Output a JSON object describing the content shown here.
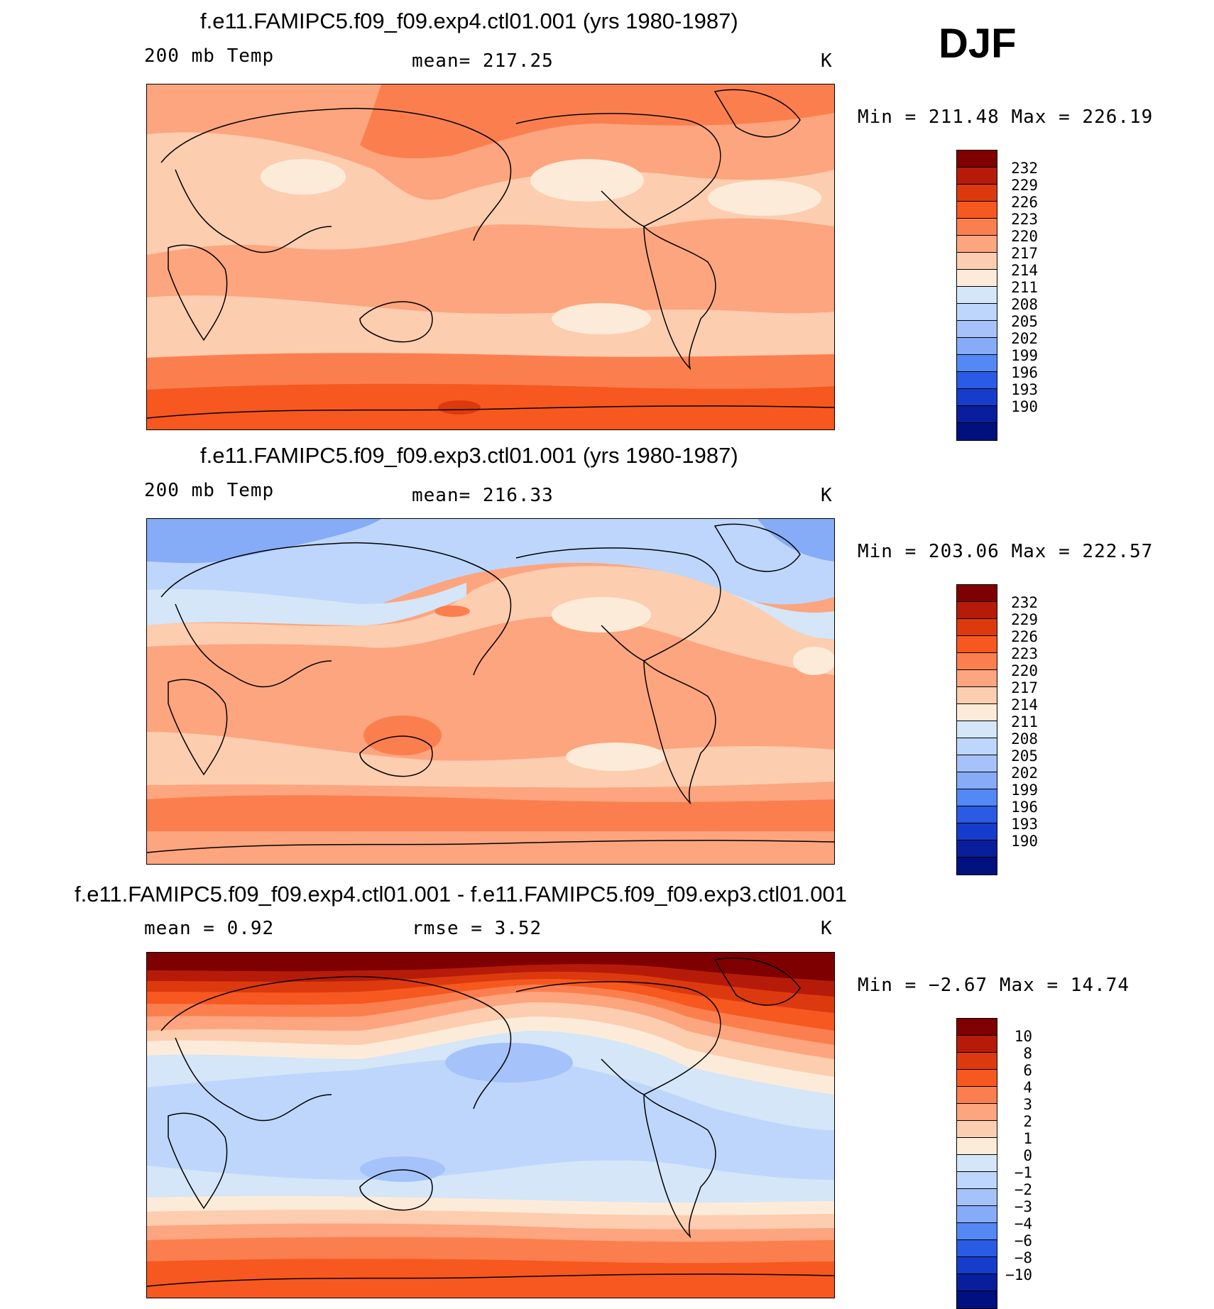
{
  "header": {
    "season": "DJF"
  },
  "panels": [
    {
      "title": "f.e11.FAMIPC5.f09_f09.exp4.ctl01.001 (yrs 1980-1987)",
      "left_label": "200  mb  Temp",
      "mid_label": "mean=  217.25",
      "unit": "K",
      "minmax": "Min  =  211.48  Max  =  226.19",
      "colorbar": {
        "colors": [
          "#7f0000",
          "#b61b0a",
          "#dc3a0e",
          "#f7581f",
          "#fb7f4e",
          "#fca57f",
          "#fdcdb0",
          "#fdebd9",
          "#d4e6f7",
          "#bed6fb",
          "#a5c3fa",
          "#86abf7",
          "#5388f5",
          "#2a5be5",
          "#163ccb",
          "#081e9c",
          "#00107f"
        ],
        "labels": [
          "232",
          "229",
          "226",
          "223",
          "220",
          "217",
          "214",
          "211",
          "208",
          "205",
          "202",
          "199",
          "196",
          "193",
          "190"
        ]
      }
    },
    {
      "title": "f.e11.FAMIPC5.f09_f09.exp3.ctl01.001 (yrs 1980-1987)",
      "left_label": "200  mb  Temp",
      "mid_label": "mean=  216.33",
      "unit": "K",
      "minmax": "Min  =  203.06  Max  =  222.57",
      "colorbar": {
        "colors": [
          "#7f0000",
          "#b61b0a",
          "#dc3a0e",
          "#f7581f",
          "#fb7f4e",
          "#fca57f",
          "#fdcdb0",
          "#fdebd9",
          "#d4e6f7",
          "#bed6fb",
          "#a5c3fa",
          "#86abf7",
          "#5388f5",
          "#2a5be5",
          "#163ccb",
          "#081e9c",
          "#00107f"
        ],
        "labels": [
          "232",
          "229",
          "226",
          "223",
          "220",
          "217",
          "214",
          "211",
          "208",
          "205",
          "202",
          "199",
          "196",
          "193",
          "190"
        ]
      }
    },
    {
      "title": "f.e11.FAMIPC5.f09_f09.exp4.ctl01.001 - f.e11.FAMIPC5.f09_f09.exp3.ctl01.001",
      "left_label": "mean  =    0.92",
      "mid_label": "rmse  =    3.52",
      "unit": "K",
      "minmax": "Min  =   −2.67  Max  =   14.74",
      "colorbar": {
        "colors": [
          "#7f0000",
          "#b61b0a",
          "#dc3a0e",
          "#f7581f",
          "#fb7f4e",
          "#fca57f",
          "#fdcdb0",
          "#fdebd9",
          "#d4e6f7",
          "#bed6fb",
          "#a5c3fa",
          "#86abf7",
          "#5388f5",
          "#2a5be5",
          "#163ccb",
          "#081e9c",
          "#00107f"
        ],
        "labels": [
          "10",
          "8",
          "6",
          "4",
          "3",
          "2",
          "1",
          "0",
          "−1",
          "−2",
          "−3",
          "−4",
          "−6",
          "−8",
          "−10"
        ]
      }
    }
  ],
  "chart_data": [
    {
      "type": "heatmap",
      "title": "f.e11.FAMIPC5.f09_f09.exp4.ctl01.001 (yrs 1980-1987)",
      "variable": "200 mb Temp",
      "units": "K",
      "mean": 217.25,
      "min": 211.48,
      "max": 226.19,
      "levels": [
        190,
        193,
        196,
        199,
        202,
        205,
        208,
        211,
        214,
        217,
        220,
        223,
        226,
        229,
        232
      ]
    },
    {
      "type": "heatmap",
      "title": "f.e11.FAMIPC5.f09_f09.exp3.ctl01.001 (yrs 1980-1987)",
      "variable": "200 mb Temp",
      "units": "K",
      "mean": 216.33,
      "min": 203.06,
      "max": 222.57,
      "levels": [
        190,
        193,
        196,
        199,
        202,
        205,
        208,
        211,
        214,
        217,
        220,
        223,
        226,
        229,
        232
      ]
    },
    {
      "type": "heatmap",
      "title": "f.e11.FAMIPC5.f09_f09.exp4.ctl01.001 - f.e11.FAMIPC5.f09_f09.exp3.ctl01.001",
      "units": "K",
      "mean": 0.92,
      "rmse": 3.52,
      "min": -2.67,
      "max": 14.74,
      "levels": [
        -10,
        -8,
        -6,
        -4,
        -3,
        -2,
        -1,
        0,
        1,
        2,
        3,
        4,
        6,
        8,
        10
      ]
    }
  ]
}
